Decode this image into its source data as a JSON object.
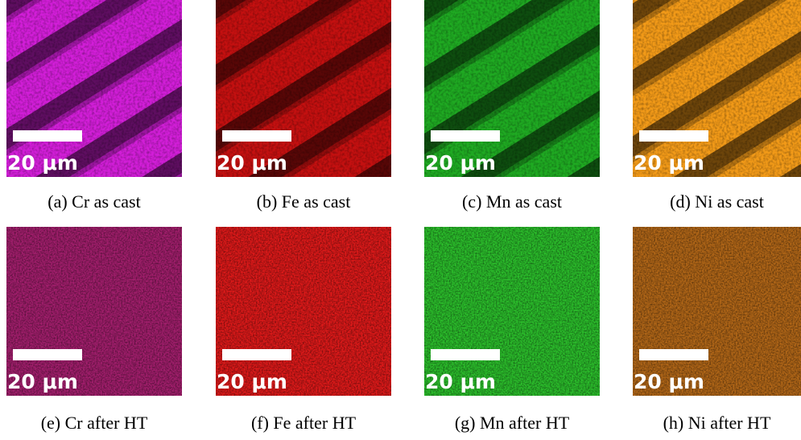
{
  "panels": [
    {
      "caption": "(a) Cr as cast",
      "scale_bar": "20 μm"
    },
    {
      "caption": "(b) Fe as cast",
      "scale_bar": "20 μm"
    },
    {
      "caption": "(c) Mn as cast",
      "scale_bar": "20 μm"
    },
    {
      "caption": "(d) Ni as cast",
      "scale_bar": "20 μm"
    },
    {
      "caption": "(e) Cr after HT",
      "scale_bar": "20 μm"
    },
    {
      "caption": "(f) Fe after HT",
      "scale_bar": "20 μm"
    },
    {
      "caption": "(g) Mn after HT",
      "scale_bar": "20 μm"
    },
    {
      "caption": "(h) Ni after HT",
      "scale_bar": "20 μm"
    }
  ]
}
